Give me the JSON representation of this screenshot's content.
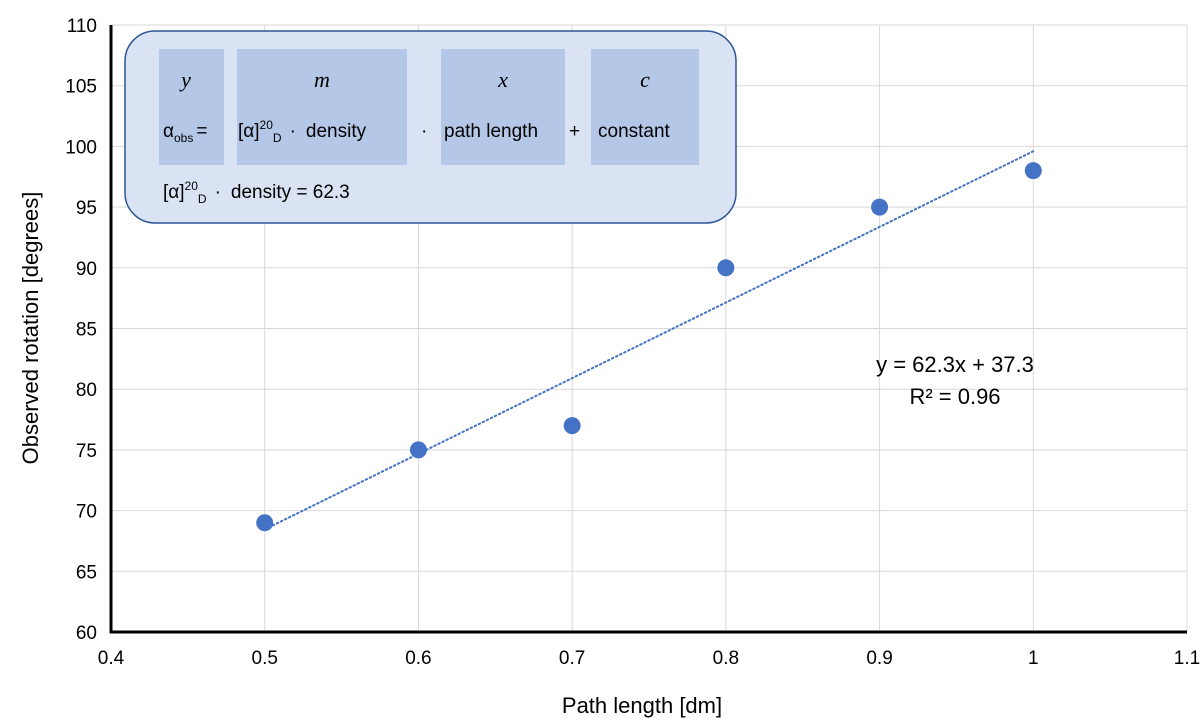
{
  "chart_data": {
    "type": "scatter",
    "xlabel": "Path length [dm]",
    "ylabel": "Observed rotation [degrees]",
    "xlim": [
      0.4,
      1.1
    ],
    "ylim": [
      60,
      110
    ],
    "xticks": [
      0.4,
      0.5,
      0.6,
      0.7,
      0.8,
      0.9,
      1,
      1.1
    ],
    "yticks": [
      60,
      65,
      70,
      75,
      80,
      85,
      90,
      95,
      100,
      105,
      110
    ],
    "grid": true,
    "series": [
      {
        "x": [
          0.5,
          0.6,
          0.7,
          0.8,
          0.9,
          1.0
        ],
        "y": [
          69,
          75,
          77,
          90,
          95,
          98
        ],
        "color": "#4472c4"
      }
    ],
    "trendline": {
      "type": "linear",
      "slope": 62.3,
      "intercept": 37.3,
      "x_range": [
        0.5,
        1.0
      ],
      "color": "#4472c4",
      "style": "dotted",
      "equation_label": "y = 62.3x + 37.3",
      "r2_label": "R² = 0.96"
    },
    "annotation_box": {
      "var_labels": [
        "y",
        "m",
        "x",
        "c"
      ],
      "line1": {
        "alpha": "α",
        "obs_sub": "obs",
        "equals": "=",
        "bracket": "[α]",
        "sup": "20",
        "sub_d": "D",
        "dot": "·",
        "density": "density",
        "path_length": "path length",
        "plus": "+",
        "constant": "constant"
      },
      "line2": {
        "bracket": "[α]",
        "sup": "20",
        "sub_d": "D",
        "dot": "·",
        "rest": "density = 62.3"
      },
      "box_fill": "#dae3f3",
      "box_stroke": "#2f5597",
      "cell_fill": "#b4c7e7"
    }
  }
}
